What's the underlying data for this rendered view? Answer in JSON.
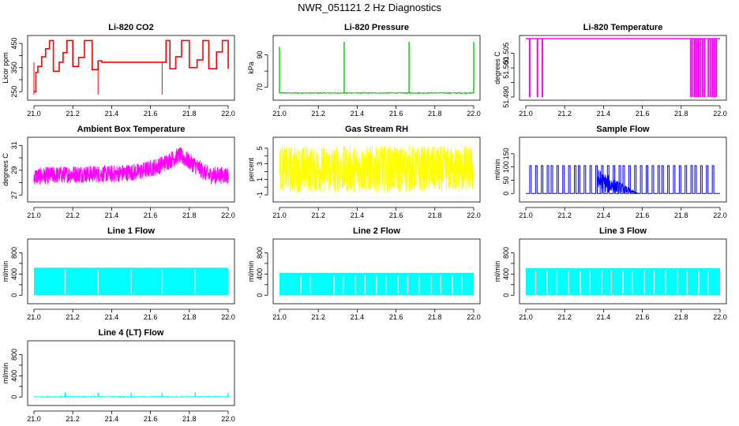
{
  "figure": {
    "title": "NWR_051121  2 Hz Diagnostics"
  },
  "chart_data": [
    {
      "type": "line",
      "title": "Li-820 CO2",
      "ylabel": "Licor ppm",
      "color": "#ff0000",
      "xlim": [
        21.0,
        22.0
      ],
      "ylim": [
        228,
        470
      ],
      "xticks": [
        21.0,
        21.2,
        21.4,
        21.6,
        21.8,
        22.0
      ],
      "xticklabels": [
        "21.0",
        "21.2",
        "21.4",
        "21.6",
        "21.8",
        "22.0"
      ],
      "yticks": [
        250,
        350,
        450
      ],
      "yticklabels": [
        "250",
        "350",
        "450"
      ],
      "yticks_minor": [
        300,
        400
      ],
      "pattern": "steps",
      "x": [
        21.0,
        21.01,
        21.02,
        21.04,
        21.06,
        21.08,
        21.1,
        21.13,
        21.15,
        21.17,
        21.2,
        21.23,
        21.26,
        21.3,
        21.33,
        21.35,
        21.4,
        21.45,
        21.5,
        21.55,
        21.6,
        21.66,
        21.68,
        21.7,
        21.73,
        21.76,
        21.8,
        21.84,
        21.87,
        21.9,
        21.94,
        21.97,
        22.0
      ],
      "y": [
        250,
        330,
        355,
        395,
        428,
        462,
        335,
        372,
        412,
        462,
        355,
        392,
        462,
        342,
        378,
        372,
        372,
        372,
        372,
        372,
        372,
        372,
        462,
        345,
        395,
        462,
        350,
        382,
        462,
        345,
        415,
        462,
        345
      ]
    },
    {
      "type": "line",
      "title": "Li-820 Pressure",
      "ylabel": "kPa",
      "color": "#00cc00",
      "xlim": [
        21.0,
        22.0
      ],
      "ylim": [
        64,
        100
      ],
      "xticks": [
        21.0,
        21.2,
        21.4,
        21.6,
        21.8,
        22.0
      ],
      "xticklabels": [
        "21.0",
        "21.2",
        "21.4",
        "21.6",
        "21.8",
        "22.0"
      ],
      "yticks": [
        70,
        90
      ],
      "yticklabels": [
        "70",
        "90"
      ],
      "yticks_minor": [
        80
      ],
      "pattern": "baseline_spikes",
      "baseline": 66.5,
      "spikes_x": [
        21.0,
        21.333,
        21.667,
        22.0
      ],
      "spikes_y": [
        95,
        98,
        98,
        98
      ]
    },
    {
      "type": "line",
      "title": "Li-820 Temperature",
      "ylabel": "degrees C",
      "color": "#ff00ff",
      "xlim": [
        21.0,
        22.0
      ],
      "ylim": [
        51.49,
        51.51
      ],
      "xticks": [
        21.0,
        21.2,
        21.4,
        21.6,
        21.8,
        22.0
      ],
      "xticklabels": [
        "21.0",
        "21.2",
        "21.4",
        "21.6",
        "21.8",
        "22.0"
      ],
      "yticks": [
        51.49,
        51.5,
        51.505
      ],
      "yticklabels": [
        "51.490",
        "51.500",
        "51.505"
      ],
      "yticks_minor": [
        51.495
      ],
      "pattern": "flat_drops",
      "baseline": 51.51,
      "drops_x": [
        21.02,
        21.06,
        21.085,
        21.85,
        21.86,
        21.87,
        21.88,
        21.89,
        21.9,
        21.91,
        21.92,
        21.94,
        21.95,
        21.96,
        21.97,
        21.98
      ]
    },
    {
      "type": "line",
      "title": "Ambient Box Temperature",
      "ylabel": "degrees C",
      "color": "#ff00ff",
      "xlim": [
        21.0,
        22.0
      ],
      "ylim": [
        26.7,
        31.4
      ],
      "xticks": [
        21.0,
        21.2,
        21.4,
        21.6,
        21.8,
        22.0
      ],
      "xticklabels": [
        "21.0",
        "21.2",
        "21.4",
        "21.6",
        "21.8",
        "22.0"
      ],
      "yticks": [
        27,
        29,
        31
      ],
      "yticklabels": [
        "27",
        "29",
        "31"
      ],
      "yticks_minor": [
        28,
        30
      ],
      "pattern": "noisy_band",
      "x": [
        21.0,
        21.2,
        21.4,
        21.55,
        21.65,
        21.75,
        21.82,
        21.9,
        22.0
      ],
      "y": [
        28.5,
        28.7,
        28.7,
        28.9,
        29.4,
        30.2,
        29.5,
        28.6,
        28.6
      ],
      "noise_amp": 0.7
    },
    {
      "type": "line",
      "title": "Gas Stream RH",
      "ylabel": "percent",
      "color": "#ffff00",
      "xlim": [
        21.0,
        22.0
      ],
      "ylim": [
        -1.5,
        6
      ],
      "xticks": [
        21.0,
        21.2,
        21.4,
        21.6,
        21.8,
        22.0
      ],
      "xticklabels": [
        "21.0",
        "21.2",
        "21.4",
        "21.6",
        "21.8",
        "22.0"
      ],
      "yticks": [
        -1,
        1,
        3,
        5
      ],
      "yticklabels": [
        "-1",
        "1",
        "3",
        "5"
      ],
      "yticks_minor": [
        0,
        2,
        4
      ],
      "pattern": "noisy_band",
      "x": [
        21.0,
        22.0
      ],
      "y": [
        2.3,
        2.3
      ],
      "noise_amp": 3.0
    },
    {
      "type": "line",
      "title": "Sample Flow",
      "ylabel": "ml/min",
      "color": "#0000ff",
      "xlim": [
        21.0,
        22.0
      ],
      "ylim": [
        -20,
        200
      ],
      "xticks": [
        21.0,
        21.2,
        21.4,
        21.6,
        21.8,
        22.0
      ],
      "xticklabels": [
        "21.0",
        "21.2",
        "21.4",
        "21.6",
        "21.8",
        "22.0"
      ],
      "yticks": [
        0,
        50,
        100,
        150
      ],
      "yticklabels": [
        "0",
        "50",
        "100",
        "150"
      ],
      "pattern": "square_pulses",
      "low": 0,
      "high": 105,
      "pulse_starts": [
        21.02,
        21.05,
        21.08,
        21.11,
        21.13,
        21.16,
        21.19,
        21.22,
        21.25,
        21.27,
        21.3,
        21.33,
        21.36,
        21.39,
        21.42,
        21.45,
        21.48,
        21.5,
        21.53,
        21.56,
        21.59,
        21.62,
        21.65,
        21.68,
        21.7,
        21.73,
        21.76,
        21.79,
        21.82,
        21.85,
        21.87,
        21.9,
        21.93,
        21.96
      ],
      "busy_range": [
        21.37,
        21.58
      ]
    },
    {
      "type": "line",
      "title": "Line 1 Flow",
      "ylabel": "ml/min",
      "color": "#00ffff",
      "xlim": [
        21.0,
        22.0
      ],
      "ylim": [
        -100,
        1000
      ],
      "xticks": [
        21.0,
        21.2,
        21.4,
        21.6,
        21.8,
        22.0
      ],
      "xticklabels": [
        "21.0",
        "21.2",
        "21.4",
        "21.6",
        "21.8",
        "22.0"
      ],
      "yticks": [
        0,
        400,
        800
      ],
      "yticklabels": [
        "0",
        "400",
        "800"
      ],
      "yticks_minor": [
        200,
        600
      ],
      "pattern": "filled_block",
      "level": 520,
      "gaps_x": [
        21.16,
        21.33,
        21.5,
        21.66,
        21.83
      ]
    },
    {
      "type": "line",
      "title": "Line 2 Flow",
      "ylabel": "ml/min",
      "color": "#00ffff",
      "xlim": [
        21.0,
        22.0
      ],
      "ylim": [
        -100,
        1000
      ],
      "xticks": [
        21.0,
        21.2,
        21.4,
        21.6,
        21.8,
        22.0
      ],
      "xticklabels": [
        "21.0",
        "21.2",
        "21.4",
        "21.6",
        "21.8",
        "22.0"
      ],
      "yticks": [
        0,
        400,
        800
      ],
      "yticklabels": [
        "0",
        "400",
        "800"
      ],
      "yticks_minor": [
        200,
        600
      ],
      "pattern": "filled_block",
      "level": 420,
      "gaps_x": [
        21.11,
        21.16,
        21.28,
        21.33,
        21.39,
        21.44,
        21.5,
        21.55,
        21.61,
        21.66,
        21.72,
        21.78,
        21.83,
        21.89,
        21.94
      ]
    },
    {
      "type": "line",
      "title": "Line 3 Flow",
      "ylabel": "ml/min",
      "color": "#00ffff",
      "xlim": [
        21.0,
        22.0
      ],
      "ylim": [
        -100,
        1000
      ],
      "xticks": [
        21.0,
        21.2,
        21.4,
        21.6,
        21.8,
        22.0
      ],
      "xticklabels": [
        "21.0",
        "21.2",
        "21.4",
        "21.6",
        "21.8",
        "22.0"
      ],
      "yticks": [
        0,
        400,
        800
      ],
      "yticklabels": [
        "0",
        "400",
        "800"
      ],
      "yticks_minor": [
        200,
        600
      ],
      "pattern": "filled_block",
      "level": 510,
      "gaps_x": [
        21.05,
        21.11,
        21.16,
        21.22,
        21.28,
        21.33,
        21.39,
        21.44,
        21.5,
        21.55,
        21.61,
        21.66,
        21.72,
        21.78,
        21.83,
        21.89,
        21.94
      ]
    },
    {
      "type": "line",
      "title": "Line 4 (LT) Flow",
      "ylabel": "ml/min",
      "color": "#00ffff",
      "xlim": [
        21.0,
        22.0
      ],
      "ylim": [
        -100,
        1000
      ],
      "xticks": [
        21.0,
        21.2,
        21.4,
        21.6,
        21.8,
        22.0
      ],
      "xticklabels": [
        "21.0",
        "21.2",
        "21.4",
        "21.6",
        "21.8",
        "22.0"
      ],
      "yticks": [
        0,
        400,
        800
      ],
      "yticklabels": [
        "0",
        "400",
        "800"
      ],
      "yticks_minor": [
        200,
        600
      ],
      "pattern": "baseline_spikes",
      "baseline": 5,
      "spikes_x": [
        21.16,
        21.33,
        21.5,
        21.66,
        21.83,
        22.0
      ],
      "spikes_y": [
        90,
        80,
        80,
        80,
        90,
        80
      ]
    }
  ]
}
